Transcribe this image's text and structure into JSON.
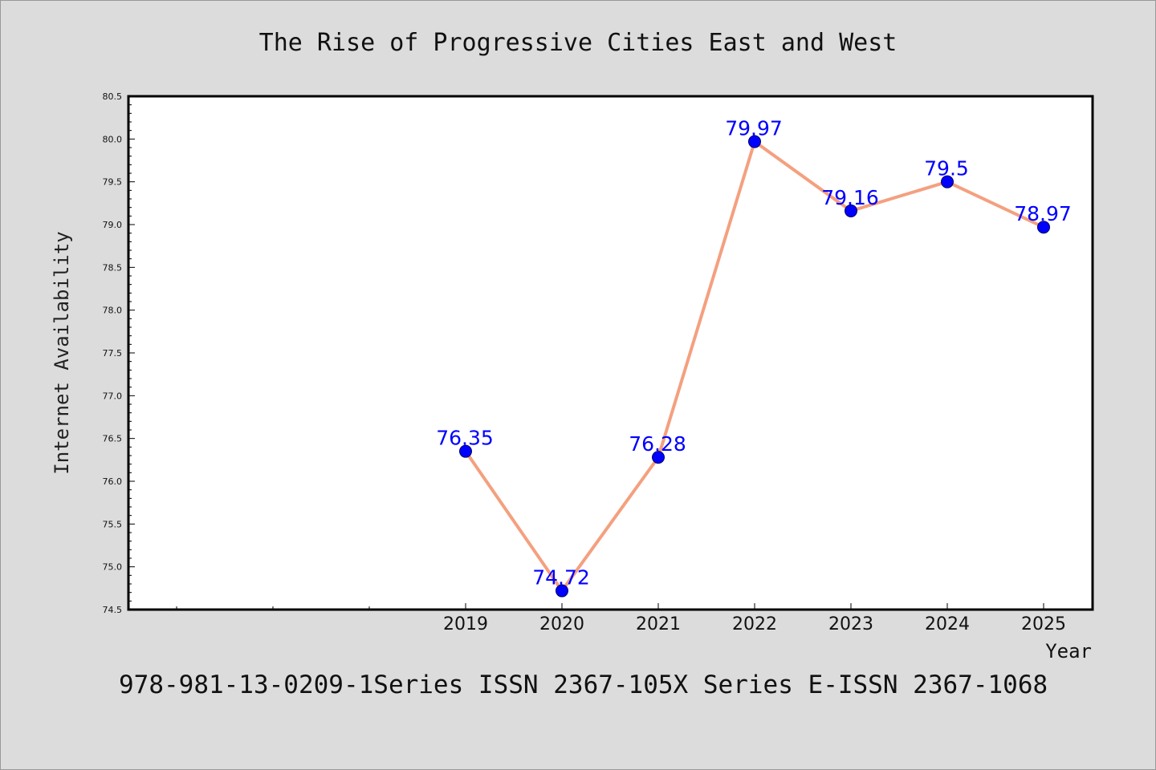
{
  "chart_data": {
    "type": "line",
    "title": "The Rise of Progressive Cities East and West",
    "xlabel": "Year",
    "ylabel": "Internet Availability",
    "categories": [
      "2019",
      "2020",
      "2021",
      "2022",
      "2023",
      "2024",
      "2025"
    ],
    "series": [
      {
        "values": [
          76.35,
          74.72,
          76.28,
          79.97,
          79.16,
          79.5,
          78.97
        ],
        "data_labels": [
          "76.35",
          "74.72",
          "76.28",
          "79.97",
          "79.16",
          "79.5",
          "78.97"
        ]
      }
    ],
    "ylim": [
      74.5,
      80.5
    ],
    "yticks": [
      "74.5",
      "75.0",
      "75.5",
      "76.0",
      "76.5",
      "77.0",
      "77.5",
      "78.0",
      "78.5",
      "79.0",
      "79.5",
      "80.0",
      "80.5"
    ],
    "grid": false,
    "legend": "none",
    "colors": {
      "line": "#f4a07f",
      "marker": "#0000ff",
      "marker_edge": "#000066",
      "label": "#0000ff",
      "plot_background": "#ffffff",
      "page_background": "#dcdcdc"
    }
  },
  "footer": "978-981-13-0209-1Series ISSN 2367-105X Series E-ISSN 2367-1068"
}
